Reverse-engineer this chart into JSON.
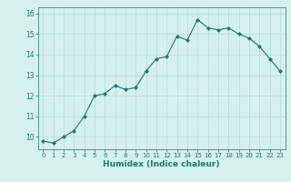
{
  "x": [
    0,
    1,
    2,
    3,
    4,
    5,
    6,
    7,
    8,
    9,
    10,
    11,
    12,
    13,
    14,
    15,
    16,
    17,
    18,
    19,
    20,
    21,
    22,
    23
  ],
  "y": [
    9.8,
    9.7,
    10.0,
    10.3,
    11.0,
    12.0,
    12.1,
    12.5,
    12.3,
    12.4,
    13.2,
    13.8,
    13.9,
    14.9,
    14.7,
    15.7,
    15.3,
    15.2,
    15.3,
    15.0,
    14.8,
    14.4,
    13.8,
    13.2
  ],
  "xlabel": "Humidex (Indice chaleur)",
  "ylim": [
    9.4,
    16.3
  ],
  "xlim": [
    -0.5,
    23.5
  ],
  "yticks": [
    10,
    11,
    12,
    13,
    14,
    15,
    16
  ],
  "xticks": [
    0,
    1,
    2,
    3,
    4,
    5,
    6,
    7,
    8,
    9,
    10,
    11,
    12,
    13,
    14,
    15,
    16,
    17,
    18,
    19,
    20,
    21,
    22,
    23
  ],
  "line_color": "#1a7a6e",
  "marker_color": "#1a7a6e",
  "bg_color": "#d6f0ee",
  "grid_color": "#b0ddd8",
  "axis_bg": "#d6f0ee"
}
